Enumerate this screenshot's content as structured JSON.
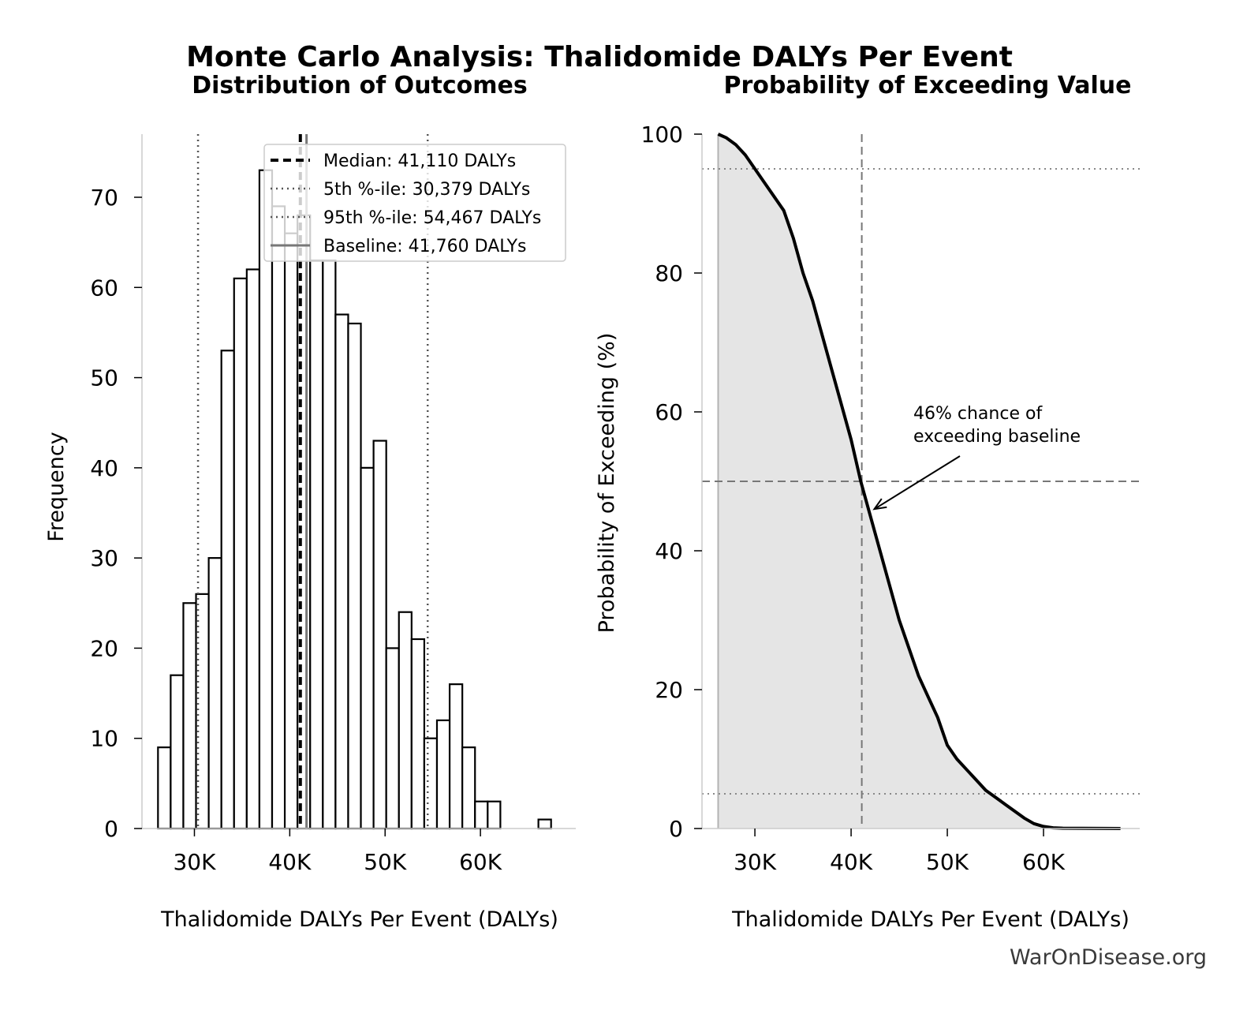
{
  "figure": {
    "title": "Monte Carlo Analysis: Thalidomide DALYs Per Event",
    "watermark": "WarOnDisease.org"
  },
  "colors": {
    "ink": "#000000",
    "dark_gray": "#555555",
    "mid_gray": "#777777",
    "light_gray": "#b3b3b3",
    "fill": "#e5e5e5"
  },
  "chart_data": [
    {
      "type": "histogram",
      "title": "Distribution of Outcomes",
      "xlabel": "Thalidomide DALYs Per Event (DALYs)",
      "ylabel": "Frequency",
      "xlim": [
        24500,
        70000
      ],
      "ylim": [
        0,
        77
      ],
      "x_ticks": [
        30000,
        40000,
        50000,
        60000
      ],
      "x_tick_labels": [
        "30K",
        "40K",
        "50K",
        "60K"
      ],
      "y_ticks": [
        0,
        10,
        20,
        30,
        40,
        50,
        60,
        70
      ],
      "y_tick_labels": [
        "0",
        "10",
        "20",
        "30",
        "40",
        "50",
        "60",
        "70"
      ],
      "bin_width": 1330,
      "bin_starts": [
        26180,
        27510,
        28840,
        30170,
        31500,
        32830,
        34160,
        35490,
        36820,
        38150,
        39480,
        40810,
        42140,
        43470,
        44800,
        46130,
        47460,
        48790,
        50120,
        51450,
        52780,
        54110,
        55440,
        56770,
        58100,
        59430,
        60760,
        62090,
        63420,
        64750,
        66080
      ],
      "counts": [
        9,
        17,
        25,
        26,
        30,
        53,
        61,
        62,
        73,
        69,
        66,
        68,
        63,
        63,
        57,
        56,
        40,
        43,
        20,
        24,
        21,
        10,
        12,
        16,
        9,
        3,
        3,
        0,
        0,
        0,
        1
      ],
      "reference_lines": [
        {
          "label": "Median: 41,110 DALYs",
          "value": 41110,
          "style": "dashed"
        },
        {
          "label": "5th %-ile: 30,379 DALYs",
          "value": 30379,
          "style": "dotted"
        },
        {
          "label": "95th %-ile: 54,467 DALYs",
          "value": 54467,
          "style": "dotted"
        },
        {
          "label": "Baseline: 41,760 DALYs",
          "value": 41760,
          "style": "solid"
        }
      ],
      "legend_position": "top-right"
    },
    {
      "type": "line",
      "title": "Probability of Exceeding Value",
      "xlabel": "Thalidomide DALYs Per Event (DALYs)",
      "ylabel": "Probability of Exceeding (%)",
      "xlim": [
        24500,
        70000
      ],
      "ylim": [
        0,
        100
      ],
      "x_ticks": [
        30000,
        40000,
        50000,
        60000
      ],
      "x_tick_labels": [
        "30K",
        "40K",
        "50K",
        "60K"
      ],
      "y_ticks": [
        0,
        20,
        40,
        60,
        80,
        100
      ],
      "y_tick_labels": [
        "0",
        "20",
        "40",
        "60",
        "80",
        "100"
      ],
      "x": [
        26180,
        27000,
        28000,
        29000,
        30000,
        31000,
        32000,
        33000,
        34000,
        35000,
        36000,
        37000,
        38000,
        39000,
        40000,
        41000,
        42000,
        43000,
        44000,
        45000,
        46000,
        47000,
        48000,
        49000,
        50000,
        51000,
        52000,
        53000,
        54000,
        55000,
        56000,
        57000,
        58000,
        59000,
        60000,
        61000,
        62000,
        64000,
        66000,
        68000
      ],
      "y": [
        100,
        99.5,
        98.5,
        97,
        95,
        93,
        91,
        89,
        85,
        80,
        76,
        71,
        66,
        61,
        56,
        50,
        45,
        40,
        35,
        30,
        26,
        22,
        19,
        16,
        12,
        10,
        8.5,
        7,
        5.5,
        4.5,
        3.5,
        2.5,
        1.5,
        0.7,
        0.3,
        0.1,
        0.05,
        0.02,
        0.01,
        0
      ],
      "reference_lines": [
        {
          "axis": "x",
          "value": 41110,
          "style": "dashed"
        },
        {
          "axis": "x",
          "value": 26180,
          "style": "solid"
        },
        {
          "axis": "y",
          "value": 50,
          "style": "dashed"
        },
        {
          "axis": "y",
          "value": 95,
          "style": "dotted"
        },
        {
          "axis": "y",
          "value": 5,
          "style": "dotted"
        }
      ],
      "annotation": {
        "text_line1": "46% chance of",
        "text_line2": "exceeding baseline",
        "x": 41760,
        "y": 46
      }
    }
  ]
}
